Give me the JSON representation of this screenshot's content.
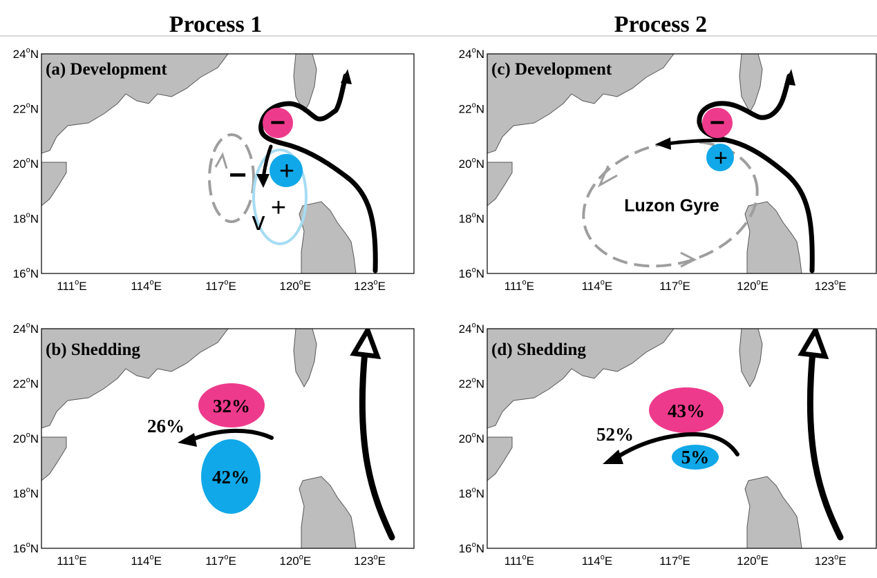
{
  "titles": {
    "left": "Process 1",
    "right": "Process 2"
  },
  "panels": {
    "a": {
      "label": "(a) Development"
    },
    "b": {
      "label": "(b) Shedding",
      "anticyclone_pct": "32%",
      "flow_pct": "26%",
      "cyclone_pct": "42%"
    },
    "c": {
      "label": "(c) Development",
      "gyre_label": "Luzon Gyre"
    },
    "d": {
      "label": "(d) Shedding",
      "anticyclone_pct": "43%",
      "flow_pct": "52%",
      "cyclone_pct": "5%"
    }
  },
  "axes": {
    "x_ticks": [
      {
        "num": "111",
        "unit": "E"
      },
      {
        "num": "114",
        "unit": "E"
      },
      {
        "num": "117",
        "unit": "E"
      },
      {
        "num": "120",
        "unit": "E"
      },
      {
        "num": "123",
        "unit": "E"
      }
    ],
    "y_ticks": [
      {
        "num": "24",
        "unit": "N"
      },
      {
        "num": "22",
        "unit": "N"
      },
      {
        "num": "20",
        "unit": "N"
      },
      {
        "num": "18",
        "unit": "N"
      },
      {
        "num": "16",
        "unit": "N"
      }
    ],
    "degree_symbol": "o"
  },
  "colors": {
    "anticyclone": "#ee3a8c",
    "cyclone": "#10a8e8",
    "cyclone_light": "#a6dcf2",
    "land": "#bdbdbd",
    "dashed_gyre": "#9e9e9e"
  },
  "symbols": {
    "minus": "−",
    "plus": "+",
    "v": "v"
  }
}
